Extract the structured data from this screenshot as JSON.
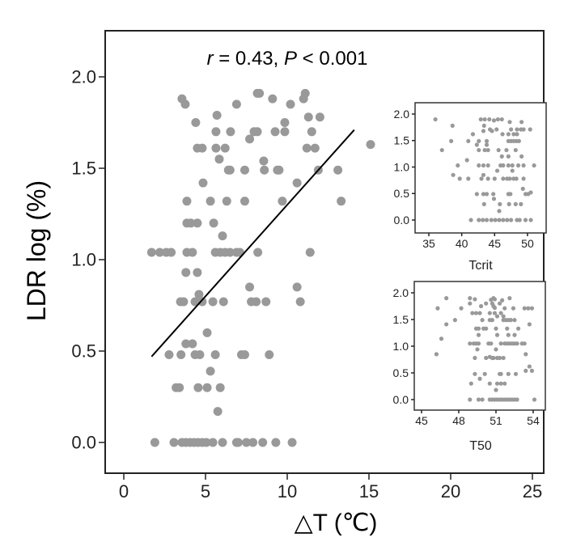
{
  "chart_data": [
    {
      "type": "scatter",
      "title_r": "r",
      "title_r_value": " = 0.43, ",
      "title_p": "P",
      "title_p_value": " < 0.001",
      "xlabel": "△T (℃)",
      "ylabel": "LDR log (%)",
      "xlim": [
        -1.1,
        25.7
      ],
      "ylim": [
        -0.16,
        2.24
      ],
      "xticks": [
        "0",
        "5",
        "10",
        "15",
        "20",
        "25"
      ],
      "xtick_values": [
        0,
        5,
        10,
        15,
        20,
        25
      ],
      "yticks": [
        "0.0",
        "0.5",
        "1.0",
        "1.5",
        "2.0"
      ],
      "ytick_values": [
        0,
        0.5,
        1,
        1.5,
        2
      ],
      "point_color": "#999999",
      "regression": {
        "x": [
          1.7,
          14.1
        ],
        "y": [
          0.47,
          1.71
        ]
      },
      "points": [
        [
          3.56,
          1.88
        ],
        [
          3.76,
          1.85
        ],
        [
          8.17,
          1.91
        ],
        [
          8.3,
          1.91
        ],
        [
          9.1,
          1.88
        ],
        [
          11.1,
          1.91
        ],
        [
          11.0,
          1.88
        ],
        [
          6.9,
          1.85
        ],
        [
          10.2,
          1.85
        ],
        [
          5.7,
          1.79
        ],
        [
          11.3,
          1.78
        ],
        [
          12.0,
          1.78
        ],
        [
          4.4,
          1.75
        ],
        [
          9.85,
          1.75
        ],
        [
          5.64,
          1.7
        ],
        [
          6.53,
          1.7
        ],
        [
          7.97,
          1.7
        ],
        [
          8.17,
          1.7
        ],
        [
          9.26,
          1.7
        ],
        [
          9.85,
          1.7
        ],
        [
          11.5,
          1.7
        ],
        [
          7.7,
          1.66
        ],
        [
          4.5,
          1.61
        ],
        [
          4.8,
          1.61
        ],
        [
          5.64,
          1.61
        ],
        [
          6.2,
          1.61
        ],
        [
          11.2,
          1.61
        ],
        [
          11.7,
          1.61
        ],
        [
          15.1,
          1.63
        ],
        [
          5.84,
          1.55
        ],
        [
          8.56,
          1.54
        ],
        [
          6.4,
          1.49
        ],
        [
          6.5,
          1.49
        ],
        [
          7.4,
          1.49
        ],
        [
          8.6,
          1.49
        ],
        [
          9.4,
          1.49
        ],
        [
          9.5,
          1.49
        ],
        [
          11.9,
          1.49
        ],
        [
          13.1,
          1.49
        ],
        [
          4.85,
          1.42
        ],
        [
          10.6,
          1.42
        ],
        [
          3.86,
          1.32
        ],
        [
          5.3,
          1.32
        ],
        [
          6.3,
          1.32
        ],
        [
          7.4,
          1.32
        ],
        [
          9.7,
          1.32
        ],
        [
          13.3,
          1.32
        ],
        [
          3.86,
          1.2
        ],
        [
          4.1,
          1.2
        ],
        [
          4.5,
          1.2
        ],
        [
          5.5,
          1.2
        ],
        [
          6.04,
          1.13
        ],
        [
          1.7,
          1.04
        ],
        [
          2.2,
          1.04
        ],
        [
          2.6,
          1.04
        ],
        [
          2.9,
          1.04
        ],
        [
          3.86,
          1.04
        ],
        [
          4.2,
          1.04
        ],
        [
          5.6,
          1.04
        ],
        [
          5.9,
          1.04
        ],
        [
          6.2,
          1.04
        ],
        [
          6.5,
          1.04
        ],
        [
          6.9,
          1.04
        ],
        [
          7.1,
          1.04
        ],
        [
          8.2,
          1.04
        ],
        [
          11.4,
          1.04
        ],
        [
          3.8,
          0.93
        ],
        [
          4.5,
          0.93
        ],
        [
          7.7,
          0.85
        ],
        [
          10.6,
          0.85
        ],
        [
          4.6,
          0.81
        ],
        [
          3.47,
          0.77
        ],
        [
          3.66,
          0.77
        ],
        [
          4.36,
          0.77
        ],
        [
          4.8,
          0.77
        ],
        [
          5.45,
          0.77
        ],
        [
          6.1,
          0.77
        ],
        [
          7.8,
          0.77
        ],
        [
          8.1,
          0.77
        ],
        [
          8.7,
          0.77
        ],
        [
          10.8,
          0.77
        ],
        [
          5.1,
          0.6
        ],
        [
          3.8,
          0.54
        ],
        [
          4.2,
          0.54
        ],
        [
          2.77,
          0.48
        ],
        [
          3.5,
          0.48
        ],
        [
          4.36,
          0.48
        ],
        [
          4.65,
          0.48
        ],
        [
          5.6,
          0.48
        ],
        [
          7.2,
          0.48
        ],
        [
          7.4,
          0.48
        ],
        [
          8.9,
          0.48
        ],
        [
          5.3,
          0.39
        ],
        [
          3.2,
          0.3
        ],
        [
          3.4,
          0.3
        ],
        [
          4.55,
          0.3
        ],
        [
          5.1,
          0.3
        ],
        [
          5.9,
          0.3
        ],
        [
          5.75,
          0.17
        ],
        [
          1.9,
          0
        ],
        [
          3.07,
          0
        ],
        [
          3.56,
          0
        ],
        [
          3.8,
          0
        ],
        [
          4.06,
          0
        ],
        [
          4.3,
          0
        ],
        [
          4.55,
          0
        ],
        [
          4.8,
          0
        ],
        [
          5.05,
          0
        ],
        [
          5.45,
          0
        ],
        [
          6.04,
          0
        ],
        [
          6.9,
          0
        ],
        [
          7.0,
          0
        ],
        [
          7.5,
          0
        ],
        [
          7.9,
          0
        ],
        [
          8.5,
          0
        ],
        [
          9.3,
          0
        ],
        [
          10.3,
          0
        ]
      ]
    },
    {
      "type": "scatter",
      "xlabel": "Tcrit",
      "xticks": [
        "35",
        "40",
        "45",
        "50"
      ],
      "xtick_values": [
        35,
        40,
        45,
        50
      ],
      "yticks": [
        "0.0",
        "0.5",
        "1.0",
        "1.5",
        "2.0"
      ],
      "ytick_values": [
        0,
        0.5,
        1,
        1.5,
        2
      ],
      "points": [
        [
          36.0,
          1.9
        ],
        [
          42.9,
          1.9
        ],
        [
          43.5,
          1.9
        ],
        [
          44.2,
          1.9
        ],
        [
          44.9,
          1.88
        ],
        [
          45.5,
          1.9
        ],
        [
          46.1,
          1.9
        ],
        [
          47.3,
          1.85
        ],
        [
          49.1,
          1.85
        ],
        [
          38.6,
          1.78
        ],
        [
          43.4,
          1.78
        ],
        [
          44.3,
          1.71
        ],
        [
          45.3,
          1.71
        ],
        [
          47.5,
          1.71
        ],
        [
          48.4,
          1.71
        ],
        [
          49.0,
          1.71
        ],
        [
          49.4,
          1.71
        ],
        [
          50.4,
          1.71
        ],
        [
          43.3,
          1.68
        ],
        [
          44.6,
          1.68
        ],
        [
          41.7,
          1.62
        ],
        [
          46.2,
          1.62
        ],
        [
          47.1,
          1.62
        ],
        [
          47.9,
          1.62
        ],
        [
          48.4,
          1.62
        ],
        [
          38.4,
          1.49
        ],
        [
          41.0,
          1.49
        ],
        [
          42.6,
          1.49
        ],
        [
          43.8,
          1.49
        ],
        [
          47.1,
          1.49
        ],
        [
          47.5,
          1.49
        ],
        [
          47.9,
          1.49
        ],
        [
          48.3,
          1.49
        ],
        [
          48.7,
          1.49
        ],
        [
          42.3,
          1.42
        ],
        [
          43.8,
          1.42
        ],
        [
          37.0,
          1.32
        ],
        [
          42.6,
          1.32
        ],
        [
          43.5,
          1.32
        ],
        [
          44.0,
          1.32
        ],
        [
          45.6,
          1.32
        ],
        [
          46.8,
          1.32
        ],
        [
          48.2,
          1.32
        ],
        [
          46.1,
          1.2
        ],
        [
          47.1,
          1.2
        ],
        [
          49.1,
          1.2
        ],
        [
          40.8,
          1.13
        ],
        [
          39.4,
          1.03
        ],
        [
          42.6,
          1.03
        ],
        [
          43.3,
          1.03
        ],
        [
          44.0,
          1.03
        ],
        [
          45.9,
          1.03
        ],
        [
          46.3,
          1.03
        ],
        [
          47.1,
          1.03
        ],
        [
          47.7,
          1.03
        ],
        [
          48.6,
          1.03
        ],
        [
          49.4,
          1.03
        ],
        [
          51.0,
          1.03
        ],
        [
          45.4,
          0.93
        ],
        [
          47.7,
          0.93
        ],
        [
          38.7,
          0.85
        ],
        [
          43.3,
          0.85
        ],
        [
          39.7,
          0.78
        ],
        [
          41.0,
          0.78
        ],
        [
          43.0,
          0.78
        ],
        [
          44.0,
          0.78
        ],
        [
          45.0,
          0.78
        ],
        [
          46.3,
          0.78
        ],
        [
          46.9,
          0.78
        ],
        [
          47.3,
          0.78
        ],
        [
          47.9,
          0.78
        ],
        [
          48.3,
          0.78
        ],
        [
          49.4,
          0.78
        ],
        [
          49.3,
          0.59
        ],
        [
          42.3,
          0.49
        ],
        [
          43.3,
          0.49
        ],
        [
          43.8,
          0.49
        ],
        [
          44.8,
          0.49
        ],
        [
          47.1,
          0.49
        ],
        [
          47.4,
          0.49
        ],
        [
          49.7,
          0.49
        ],
        [
          50.1,
          0.49
        ],
        [
          50.5,
          0.52
        ],
        [
          44.9,
          0.4
        ],
        [
          43.4,
          0.3
        ],
        [
          45.8,
          0.3
        ],
        [
          47.2,
          0.3
        ],
        [
          48.2,
          0.3
        ],
        [
          49.0,
          0.3
        ],
        [
          45.7,
          0.17
        ],
        [
          41.4,
          0
        ],
        [
          42.6,
          0
        ],
        [
          43.2,
          0
        ],
        [
          43.8,
          0
        ],
        [
          44.5,
          0
        ],
        [
          45.1,
          0
        ],
        [
          45.7,
          0
        ],
        [
          46.3,
          0
        ],
        [
          46.9,
          0
        ],
        [
          47.5,
          0
        ],
        [
          48.4,
          0
        ],
        [
          48.8,
          0
        ],
        [
          49.7,
          0
        ],
        [
          50.5,
          0
        ]
      ]
    },
    {
      "type": "scatter",
      "xlabel": "T50",
      "xticks": [
        "45",
        "48",
        "51",
        "54"
      ],
      "xtick_values": [
        45,
        48,
        51,
        54
      ],
      "yticks": [
        "0.0",
        "0.5",
        "1.0",
        "1.5",
        "2.0"
      ],
      "ytick_values": [
        0,
        0.5,
        1,
        1.5,
        2
      ],
      "points": [
        [
          47.0,
          1.9
        ],
        [
          48.9,
          1.9
        ],
        [
          49.3,
          1.88
        ],
        [
          50.9,
          1.88
        ],
        [
          51.5,
          1.86
        ],
        [
          52.1,
          1.9
        ],
        [
          50.6,
          1.87
        ],
        [
          50.8,
          1.9
        ],
        [
          51.3,
          1.8
        ],
        [
          48.9,
          1.8
        ],
        [
          50.2,
          1.8
        ],
        [
          50.7,
          1.8
        ],
        [
          49.8,
          1.75
        ],
        [
          50.8,
          1.75
        ],
        [
          50.9,
          1.72
        ],
        [
          46.3,
          1.71
        ],
        [
          48.2,
          1.71
        ],
        [
          51.7,
          1.71
        ],
        [
          52.4,
          1.71
        ],
        [
          53.3,
          1.71
        ],
        [
          53.6,
          1.71
        ],
        [
          53.9,
          1.71
        ],
        [
          49.1,
          1.62
        ],
        [
          49.4,
          1.62
        ],
        [
          49.7,
          1.62
        ],
        [
          50.5,
          1.62
        ],
        [
          50.9,
          1.62
        ],
        [
          51.4,
          1.62
        ],
        [
          51.1,
          1.56
        ],
        [
          51.6,
          1.56
        ],
        [
          47.7,
          1.49
        ],
        [
          49.9,
          1.49
        ],
        [
          50.5,
          1.49
        ],
        [
          50.7,
          1.49
        ],
        [
          51.6,
          1.49
        ],
        [
          51.8,
          1.49
        ],
        [
          52.0,
          1.49
        ],
        [
          52.2,
          1.49
        ],
        [
          52.5,
          1.49
        ],
        [
          47.0,
          1.41
        ],
        [
          53.7,
          1.41
        ],
        [
          49.4,
          1.33
        ],
        [
          49.6,
          1.33
        ],
        [
          50.0,
          1.33
        ],
        [
          50.2,
          1.33
        ],
        [
          51.0,
          1.33
        ],
        [
          51.9,
          1.33
        ],
        [
          52.8,
          1.33
        ],
        [
          49.6,
          1.21
        ],
        [
          51.1,
          1.21
        ],
        [
          52.0,
          1.21
        ],
        [
          52.5,
          1.21
        ],
        [
          46.6,
          1.14
        ],
        [
          48.9,
          1.05
        ],
        [
          49.2,
          1.05
        ],
        [
          49.4,
          1.05
        ],
        [
          49.6,
          1.05
        ],
        [
          50.4,
          1.05
        ],
        [
          50.6,
          1.05
        ],
        [
          51.4,
          1.05
        ],
        [
          51.7,
          1.05
        ],
        [
          51.9,
          1.05
        ],
        [
          52.1,
          1.05
        ],
        [
          52.3,
          1.05
        ],
        [
          52.5,
          1.05
        ],
        [
          52.7,
          1.05
        ],
        [
          53.1,
          1.05
        ],
        [
          53.3,
          1.05
        ],
        [
          49.5,
          0.94
        ],
        [
          51.0,
          0.94
        ],
        [
          46.2,
          0.85
        ],
        [
          53.4,
          0.85
        ],
        [
          49.3,
          0.78
        ],
        [
          50.2,
          0.78
        ],
        [
          50.5,
          0.8
        ],
        [
          50.7,
          0.78
        ],
        [
          50.8,
          0.78
        ],
        [
          51.1,
          0.78
        ],
        [
          51.3,
          0.78
        ],
        [
          51.6,
          0.78
        ],
        [
          53.7,
          0.62
        ],
        [
          53.4,
          0.54
        ],
        [
          53.9,
          0.54
        ],
        [
          49.3,
          0.48
        ],
        [
          50.1,
          0.48
        ],
        [
          51.3,
          0.48
        ],
        [
          51.4,
          0.48
        ],
        [
          52.0,
          0.48
        ],
        [
          52.6,
          0.48
        ],
        [
          49.7,
          0.39
        ],
        [
          49.0,
          0.3
        ],
        [
          50.5,
          0.3
        ],
        [
          51.1,
          0.3
        ],
        [
          51.4,
          0.3
        ],
        [
          51.7,
          0.3
        ],
        [
          51.0,
          0.18
        ],
        [
          48.9,
          0
        ],
        [
          49.6,
          0
        ],
        [
          49.9,
          0
        ],
        [
          50.5,
          0
        ],
        [
          50.7,
          0
        ],
        [
          50.9,
          0
        ],
        [
          51.1,
          0
        ],
        [
          51.3,
          0
        ],
        [
          51.5,
          0
        ],
        [
          51.7,
          0
        ],
        [
          51.9,
          0
        ],
        [
          52.1,
          0
        ],
        [
          52.3,
          0
        ],
        [
          52.5,
          0
        ],
        [
          52.7,
          0
        ],
        [
          54.1,
          0
        ]
      ]
    }
  ]
}
